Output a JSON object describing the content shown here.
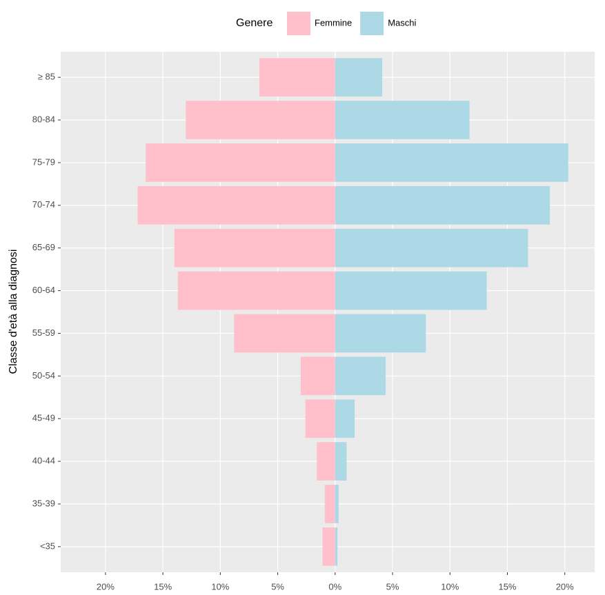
{
  "chart_data": {
    "type": "bar",
    "orientation": "horizontal",
    "y_label": "Classe d'età alla diagnosi",
    "legend_title": "Genere",
    "legend_position": "top",
    "categories": [
      "<35",
      "35-39",
      "40-44",
      "45-49",
      "50-54",
      "55-59",
      "60-64",
      "65-69",
      "70-74",
      "75-79",
      "80-84",
      "≥ 85"
    ],
    "series": [
      {
        "name": "Femmine",
        "color": "#FFC0CB",
        "values": [
          -1.1,
          -0.9,
          -1.6,
          -2.6,
          -3.0,
          -8.8,
          -13.7,
          -14.0,
          -17.2,
          -16.5,
          -13.0,
          -6.6
        ]
      },
      {
        "name": "Maschi",
        "color": "#ADD8E6",
        "values": [
          0.2,
          0.3,
          1.0,
          1.7,
          4.4,
          7.9,
          13.2,
          16.8,
          18.7,
          20.3,
          11.7,
          4.1
        ]
      }
    ],
    "xlim": [
      -23.9,
      22.6
    ],
    "xticks": [
      {
        "value": -20,
        "label": "20%"
      },
      {
        "value": -15,
        "label": "15%"
      },
      {
        "value": -10,
        "label": "10%"
      },
      {
        "value": -5,
        "label": "5%"
      },
      {
        "value": 0,
        "label": "0%"
      },
      {
        "value": 5,
        "label": "5%"
      },
      {
        "value": 10,
        "label": "10%"
      },
      {
        "value": 15,
        "label": "15%"
      },
      {
        "value": 20,
        "label": "20%"
      }
    ],
    "grid": true
  }
}
